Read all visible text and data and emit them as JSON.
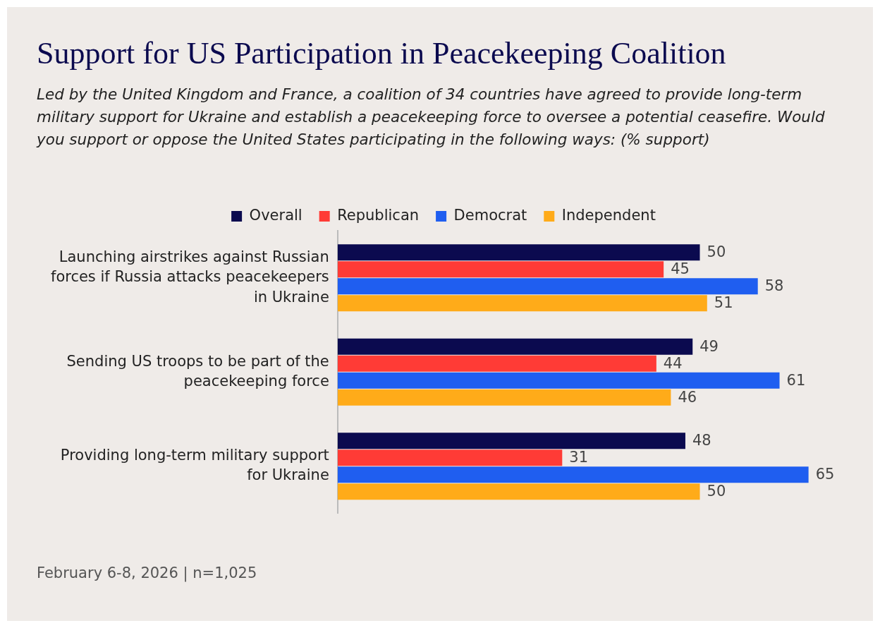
{
  "chart_data": {
    "type": "bar",
    "orientation": "horizontal",
    "title": "Support for US Participation in Peacekeeping Coalition",
    "subtitle": "Led by the United Kingdom and France, a coalition of 34 countries have agreed to provide long-term military support for Ukraine and establish a peacekeeping force to oversee a potential ceasefire. Would you support or oppose the United States participating in the following ways: (% support)",
    "categories": [
      "Launching airstrikes against Russian forces if Russia attacks peacekeepers in Ukraine",
      "Sending US troops to be part of the peacekeeping force",
      "Providing long-term military support for Ukraine"
    ],
    "series": [
      {
        "name": "Overall",
        "color": "#0b0a4f",
        "values": [
          50,
          49,
          48
        ]
      },
      {
        "name": "Republican",
        "color": "#ff3b36",
        "values": [
          45,
          44,
          31
        ]
      },
      {
        "name": "Democrat",
        "color": "#1f5ef0",
        "values": [
          58,
          61,
          65
        ]
      },
      {
        "name": "Independent",
        "color": "#ffab19",
        "values": [
          51,
          46,
          50
        ]
      }
    ],
    "data_labels": true,
    "legend": "top",
    "tick_labels": "y",
    "annotations": [
      "February 6-8, 2026 | n=1,025"
    ]
  }
}
